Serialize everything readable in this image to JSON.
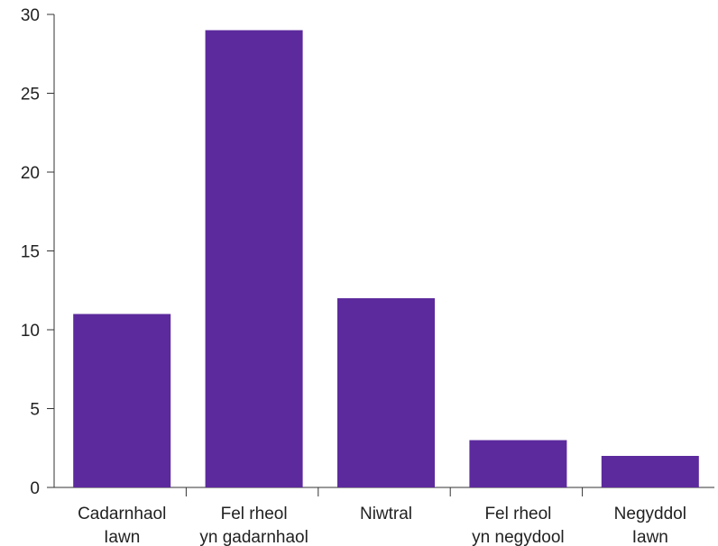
{
  "chart_data": {
    "type": "bar",
    "title": "",
    "xlabel": "",
    "ylabel": "",
    "categories": [
      [
        "Cadarnhaol",
        "Iawn"
      ],
      [
        "Fel rheol",
        "yn gadarnhaol"
      ],
      [
        "Niwtral"
      ],
      [
        "Fel rheol",
        "yn negydool"
      ],
      [
        "Negyddol",
        "Iawn"
      ]
    ],
    "values": [
      11,
      29,
      12,
      3,
      2
    ],
    "ylim": [
      0,
      30
    ],
    "yticks": [
      0,
      5,
      10,
      15,
      20,
      25,
      30
    ],
    "grid": false,
    "legend": "none",
    "bar_color": "#5c2a9d"
  }
}
